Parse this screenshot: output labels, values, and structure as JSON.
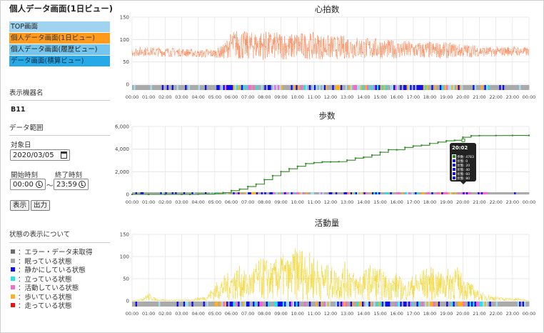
{
  "page_title": "個人データ画面(1日ビュー)",
  "nav": [
    {
      "label": "TOP画面"
    },
    {
      "label": "個人データ画面(1日ビュー)"
    },
    {
      "label": "個人データ画面(履歴ビュー)"
    },
    {
      "label": "データ画面(積算ビュー)"
    }
  ],
  "sidebar": {
    "device_label": "表示機器名",
    "device_value": "B11",
    "range_label": "データ範囲",
    "date_label": "対象日",
    "date_value": "2020/03/05",
    "start_label": "開始時刻",
    "end_label": "終了時刻",
    "start_value": "00:00",
    "tilde": "〜",
    "end_value": "23:59",
    "show_button": "表示",
    "output_button": "出力",
    "legend_title": "状態の表示について",
    "legend": [
      {
        "label": "：エラー・データ未取得",
        "color": "#6e6e6e"
      },
      {
        "label": "：眠っている状態",
        "color": "#aaaaaa"
      },
      {
        "label": "：静かにしている状態",
        "color": "#1010ee"
      },
      {
        "label": "：立っている状態",
        "color": "#22e5e5"
      },
      {
        "label": "：活動している状態",
        "color": "#ff66cc"
      },
      {
        "label": "：歩いている状態",
        "color": "#ffb020"
      },
      {
        "label": "：走っている状態",
        "color": "#ee1111"
      }
    ]
  },
  "time_ticks": [
    "00:00",
    "01:00",
    "02:00",
    "03:00",
    "04:00",
    "05:00",
    "06:00",
    "07:00",
    "08:00",
    "09:00",
    "10:00",
    "11:00",
    "12:00",
    "13:00",
    "14:00",
    "15:00",
    "16:00",
    "17:00",
    "18:00",
    "19:00",
    "20:00",
    "21:00",
    "22:00",
    "23:00",
    "00:00"
  ],
  "chart_data": [
    {
      "type": "line",
      "title": "心拍数",
      "ylim": [
        0,
        150
      ],
      "yticks": [
        "150",
        "100",
        "50",
        "0"
      ],
      "color": "#ff7a45",
      "x_range": [
        "00:00",
        "24:00"
      ],
      "x": [
        0,
        0.5,
        1,
        1.5,
        2,
        2.5,
        3,
        3.5,
        4,
        4.5,
        5,
        5.5,
        6,
        6.5,
        7,
        7.5,
        8,
        8.5,
        9,
        9.5,
        10,
        10.5,
        11,
        11.5,
        12,
        12.5,
        13,
        13.5,
        14,
        14.5,
        15,
        15.5,
        16,
        16.5,
        17,
        17.5,
        18,
        18.5,
        19,
        19.5,
        20,
        20.5,
        21,
        21.5,
        22,
        22.5,
        23,
        23.5,
        24
      ],
      "low": [
        63,
        62,
        64,
        62,
        62,
        62,
        62,
        61,
        60,
        58,
        60,
        56,
        60,
        54,
        55,
        56,
        54,
        55,
        55,
        54,
        56,
        56,
        56,
        55,
        56,
        56,
        57,
        56,
        57,
        57,
        57,
        58,
        57,
        56,
        58,
        56,
        57,
        58,
        58,
        60,
        60,
        60,
        62,
        62,
        62,
        63,
        64,
        63,
        63
      ],
      "high": [
        82,
        84,
        83,
        83,
        82,
        82,
        80,
        80,
        76,
        80,
        78,
        88,
        118,
        125,
        116,
        118,
        120,
        116,
        118,
        112,
        118,
        115,
        116,
        112,
        110,
        108,
        110,
        108,
        105,
        104,
        103,
        100,
        98,
        98,
        96,
        95,
        96,
        94,
        94,
        92,
        90,
        90,
        86,
        84,
        83,
        84,
        86,
        84,
        82
      ]
    },
    {
      "type": "line",
      "title": "歩数",
      "ylim": [
        0,
        6000
      ],
      "yticks": [
        "6,000",
        "4,000",
        "2,000",
        "0"
      ],
      "color": "#2e8b22",
      "x": [
        0,
        1,
        2,
        3,
        3.5,
        4,
        5,
        5.5,
        6,
        6.5,
        7,
        7.5,
        8,
        8.5,
        9,
        9.5,
        10,
        10.5,
        11,
        11.5,
        12,
        12.5,
        13,
        13.5,
        14,
        14.5,
        15,
        15.5,
        16,
        16.5,
        17,
        17.5,
        18,
        18.5,
        19,
        19.5,
        20,
        20.5,
        21,
        22,
        23,
        24
      ],
      "values": [
        0,
        0,
        0,
        0,
        0,
        20,
        60,
        150,
        330,
        460,
        690,
        900,
        1300,
        1650,
        2010,
        2260,
        2480,
        2720,
        2800,
        2870,
        2870,
        2890,
        3020,
        3200,
        3290,
        3470,
        3720,
        3940,
        3940,
        4150,
        4280,
        4340,
        4500,
        4620,
        4730,
        4780,
        5050,
        5180,
        5190,
        5200,
        5205,
        5210
      ]
    },
    {
      "type": "line",
      "title": "活動量",
      "ylim": [
        0,
        150
      ],
      "yticks": [
        "150",
        "100",
        "50",
        "0"
      ],
      "color": "#f2d21e",
      "x": [
        0,
        0.5,
        1,
        1.5,
        2,
        2.5,
        3,
        3.5,
        4,
        4.5,
        5,
        5.5,
        6,
        6.5,
        7,
        7.5,
        8,
        8.5,
        9,
        9.5,
        10,
        10.5,
        11,
        11.5,
        12,
        12.5,
        13,
        13.5,
        14,
        14.5,
        15,
        15.5,
        16,
        16.5,
        17,
        17.5,
        18,
        18.5,
        19,
        19.5,
        20,
        20.5,
        21,
        21.5,
        22,
        22.5,
        23,
        23.5,
        24
      ],
      "high": [
        0,
        5,
        18,
        4,
        3,
        2,
        3,
        2,
        8,
        12,
        40,
        55,
        70,
        80,
        60,
        90,
        100,
        85,
        110,
        95,
        130,
        115,
        105,
        85,
        80,
        70,
        95,
        60,
        70,
        85,
        75,
        55,
        65,
        40,
        60,
        70,
        80,
        65,
        70,
        85,
        60,
        40,
        20,
        15,
        10,
        8,
        6,
        5,
        0
      ]
    }
  ],
  "tooltip": {
    "time": "20:02",
    "rows": [
      {
        "label": "歩数: 4783",
        "color": "#2e8b22"
      },
      {
        "label": "状態: 0",
        "color": "#1010ee"
      },
      {
        "label": "状態: 20",
        "color": "#1010ee"
      },
      {
        "label": "状態: 40",
        "color": "#1010ee"
      },
      {
        "label": "状態: 60",
        "color": "#1010ee"
      },
      {
        "label": "状態: 80",
        "color": "#1010ee"
      }
    ]
  }
}
